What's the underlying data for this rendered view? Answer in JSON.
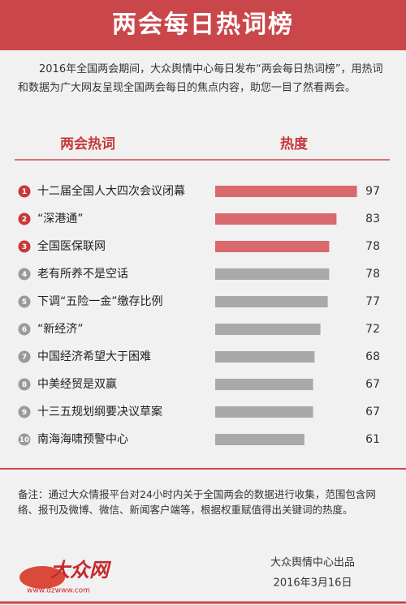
{
  "header": {
    "title": "两会每日热词榜"
  },
  "intro": "2016年全国两会期间，大众舆情中心每日发布“两会每日热词榜”，用热词和数据为广大网友呈现全国两会每日的焦点内容，助您一目了然看两会。",
  "chart_data": {
    "type": "bar",
    "column_headers": [
      "两会热词",
      "热度"
    ],
    "ranks": [
      "1",
      "2",
      "3",
      "4",
      "5",
      "6",
      "7",
      "8",
      "9",
      "10"
    ],
    "categories": [
      "十二届全国人大四次会议闭幕",
      "“深港通”",
      "全国医保联网",
      "老有所养不是空话",
      "下调“五险一金”缴存比例",
      "“新经济”",
      "中国经济希望大于困难",
      "中美经贸是双赢",
      "十三五规划纲要决议草案",
      "南海海啸预警中心"
    ],
    "values": [
      97,
      83,
      78,
      78,
      77,
      72,
      68,
      67,
      67,
      61
    ],
    "colors": [
      "#d9696c",
      "#d9696c",
      "#d9696c",
      "#a9a9a9",
      "#a9a9a9",
      "#a9a9a9",
      "#a9a9a9",
      "#a9a9a9",
      "#a9a9a9",
      "#a9a9a9"
    ],
    "rank_colors": [
      "#c8383c",
      "#c8383c",
      "#c8383c",
      "#9a9a9a",
      "#9a9a9a",
      "#9a9a9a",
      "#9a9a9a",
      "#9a9a9a",
      "#9a9a9a",
      "#9a9a9a"
    ],
    "xlim": [
      0,
      100
    ]
  },
  "note": "备注：通过大众情报平台对24小时内关于全国两会的数据进行收集，范围包含网络、报刊及微博、微信、新闻客户端等，根据权重赋值得出关键词的热度。",
  "logo": {
    "name": "大众网",
    "url": "www.dzwww.com"
  },
  "credit": "大众舆情中心出品",
  "date": "2016年3月16日"
}
